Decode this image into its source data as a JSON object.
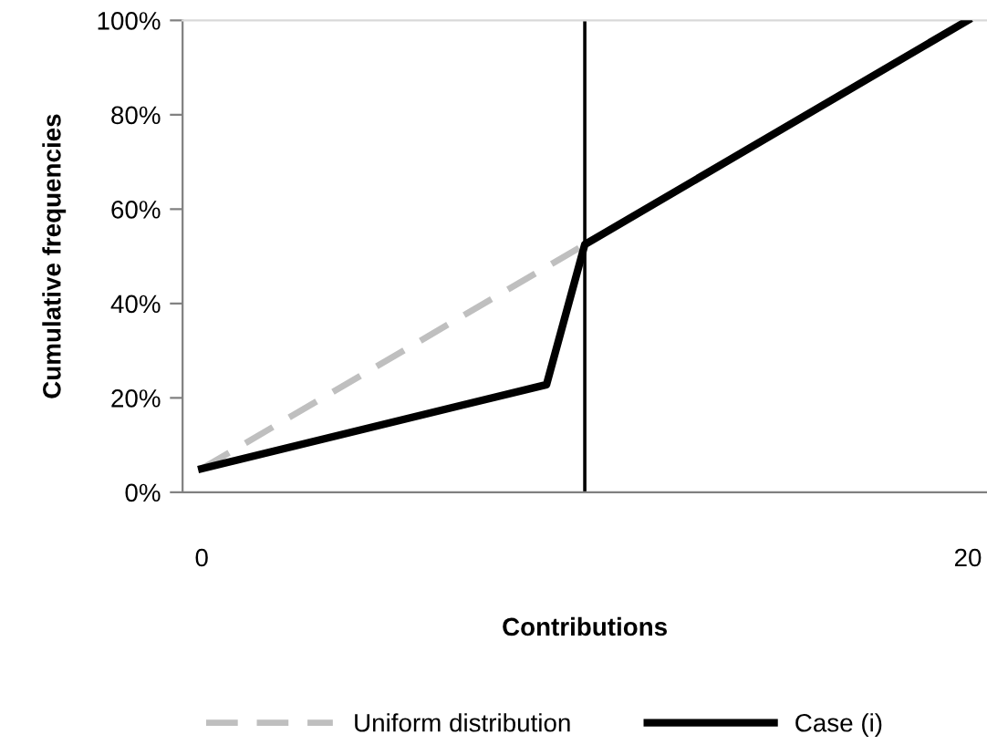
{
  "chart_data": {
    "type": "line",
    "xlabel": "Contributions",
    "ylabel": "Cumulative frequencies",
    "series": [
      {
        "name": "Uniform distribution",
        "color": "#bfbfbf",
        "line_style": "dashed",
        "x": [
          0,
          10
        ],
        "values": [
          5,
          52.5
        ]
      },
      {
        "name": "Case (i)",
        "color": "#000000",
        "line_style": "solid",
        "x": [
          0,
          9,
          10,
          20
        ],
        "values": [
          5,
          22.8,
          52.5,
          100
        ]
      }
    ],
    "xlim": [
      -0.5,
      20.5
    ],
    "xticks": [
      0,
      20
    ],
    "ylim": [
      0,
      100
    ],
    "yticks": [
      {
        "value": 0,
        "label": "0%"
      },
      {
        "value": 20,
        "label": "20%"
      },
      {
        "value": 40,
        "label": "40%"
      },
      {
        "value": 60,
        "label": "60%"
      },
      {
        "value": 80,
        "label": "80%"
      },
      {
        "value": 100,
        "label": "100%"
      }
    ],
    "ref_lines": [
      {
        "axis": "x",
        "value": 10,
        "label": null,
        "color": "#000000"
      }
    ],
    "legend": "bottom",
    "marker": "none"
  }
}
